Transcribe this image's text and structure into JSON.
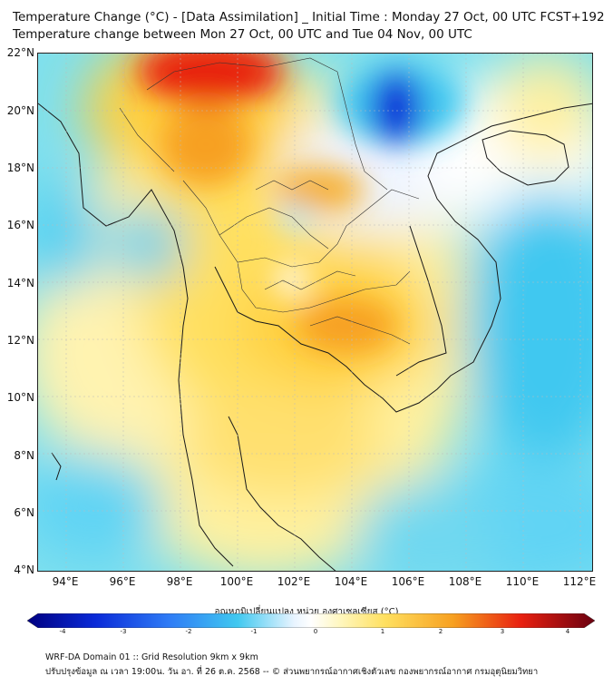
{
  "header": {
    "title_line1": "Temperature Change (°C) - [Data Assimilation] _ Initial Time : Monday 27 Oct, 00 UTC FCST+192",
    "title_line2": "Temperature change between Mon 27 Oct, 00 UTC and Tue 04 Nov, 00 UTC"
  },
  "map": {
    "lat_labels": [
      "22°N",
      "20°N",
      "18°N",
      "16°N",
      "14°N",
      "12°N",
      "10°N",
      "8°N",
      "6°N",
      "4°N"
    ],
    "lon_labels": [
      "94°E",
      "96°E",
      "98°E",
      "100°E",
      "102°E",
      "104°E",
      "106°E",
      "108°E",
      "110°E",
      "112°E"
    ],
    "lat_range": [
      4,
      22.2
    ],
    "lon_range": [
      93,
      112.5
    ],
    "colors": {
      "ocean_base": "#7fe0ee",
      "warm_yellow": "#ffe060",
      "warm_orange": "#f7a020",
      "hot_red": "#e82010",
      "cold_blue": "#0a2ad8",
      "cool_cyan": "#40c8f0",
      "neutral": "#f4f8ff",
      "coast": "#1a1a1a",
      "border": "#333333"
    }
  },
  "colorbar": {
    "title": "อุณหภูมิเปลี่ยนแปลง หน่วย องศาเซลเซียส (°C)",
    "ticks": [
      "-4",
      "-3",
      "-2",
      "-1",
      "0",
      "1",
      "2",
      "3",
      "4"
    ],
    "range": [
      -4,
      4
    ]
  },
  "footer": {
    "line1": "WRF-DA Domain 01 :: Grid Resolution 9km x 9km",
    "line2": "ปรับปรุงข้อมูล ณ เวลา 19:00น. วัน อา. ที่ 26 ต.ค. 2568 -- © ส่วนพยากรณ์อากาศเชิงตัวเลข กองพยากรณ์อากาศ กรมอุตุนิยมวิทยา"
  }
}
